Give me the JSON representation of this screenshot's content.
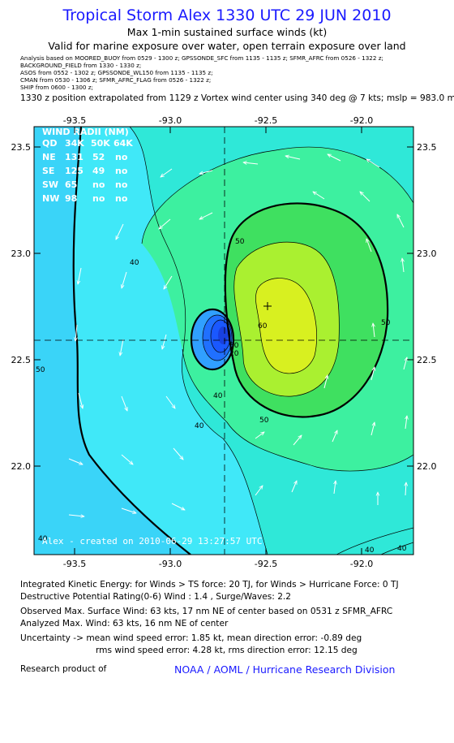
{
  "title": "Tropical Storm Alex 1330 UTC 29 JUN 2010",
  "subtitle": "Max 1-min sustained surface winds (kt)",
  "validity": "Valid for marine exposure over water, open terrain exposure over land",
  "sources": [
    "Analysis based on  MOORED_BUOY from 0529 - 1300 z;  GPSSONDE_SFC from 1135 - 1135 z;  SFMR_AFRC from 0526 - 1322 z;",
    "BACKGROUND_FIELD from 1330 - 1330 z;",
    "ASOS from 0552 - 1302 z;  GPSSONDE_WL150 from 1135 - 1135 z;",
    "CMAN from 0530 - 1306 z;  SFMR_AFRC_FLAG from 0526 - 1322 z;",
    "SHIP from 0600 - 1300 z;"
  ],
  "position_note": "1330 z position extrapolated from 1129 z Vortex wind center using 340 deg @ 7 kts; mslp = 983.0 mb",
  "map": {
    "lon_ticks": [
      "-93.5",
      "-93.0",
      "-92.5",
      "-92.0"
    ],
    "lat_ticks": [
      "23.5",
      "23.0",
      "22.5",
      "22.0"
    ],
    "contour_labels": [
      "40",
      "40",
      "50",
      "50",
      "50",
      "60",
      "50",
      "40",
      "40",
      "40",
      "50",
      "20",
      "30"
    ],
    "created_label": "Alex - created on 2010-06-29 13:27:57 UTC",
    "fill_colors": {
      "level_30": "#3ad4f8",
      "level_40": "#40e8f8",
      "level_40b": "#2fe8d8",
      "level_50": "#3df0a0",
      "level_60": "#3fe060",
      "level_70": "#aaf030",
      "level_80": "#d8f020",
      "core": "#1a58ff"
    },
    "wind_radii": {
      "header": "WIND RADII (NM)",
      "columns": [
        "QD",
        "34K",
        "50K",
        "64K"
      ],
      "rows": [
        [
          "NE",
          "131",
          "52",
          "no"
        ],
        [
          "SE",
          "125",
          "49",
          "no"
        ],
        [
          "SW",
          "65",
          "no",
          "no"
        ],
        [
          "NW",
          "98",
          "no",
          "no"
        ]
      ]
    }
  },
  "footer": {
    "ike": "Integrated Kinetic Energy:  for Winds > TS force: 20 TJ,  for Winds > Hurricane Force: 0 TJ",
    "dpr": "Destructive Potential Rating(0-6)   Wind : 1.4 , Surge/Waves: 2.2",
    "observed": "Observed Max. Surface Wind: 63 kts, 17 nm NE of center based on 0531 z SFMR_AFRC",
    "analyzed": "Analyzed Max. Wind: 63 kts, 16 nm NE of center",
    "uncert1": "Uncertainty -> mean wind speed error: 1.85 kt,   mean direction error:  -0.89 deg",
    "uncert2": "rms wind speed error: 4.28 kt,   rms direction error: 12.15 deg",
    "research": "Research product of",
    "noaa": "NOAA / AOML / Hurricane Research Division"
  }
}
